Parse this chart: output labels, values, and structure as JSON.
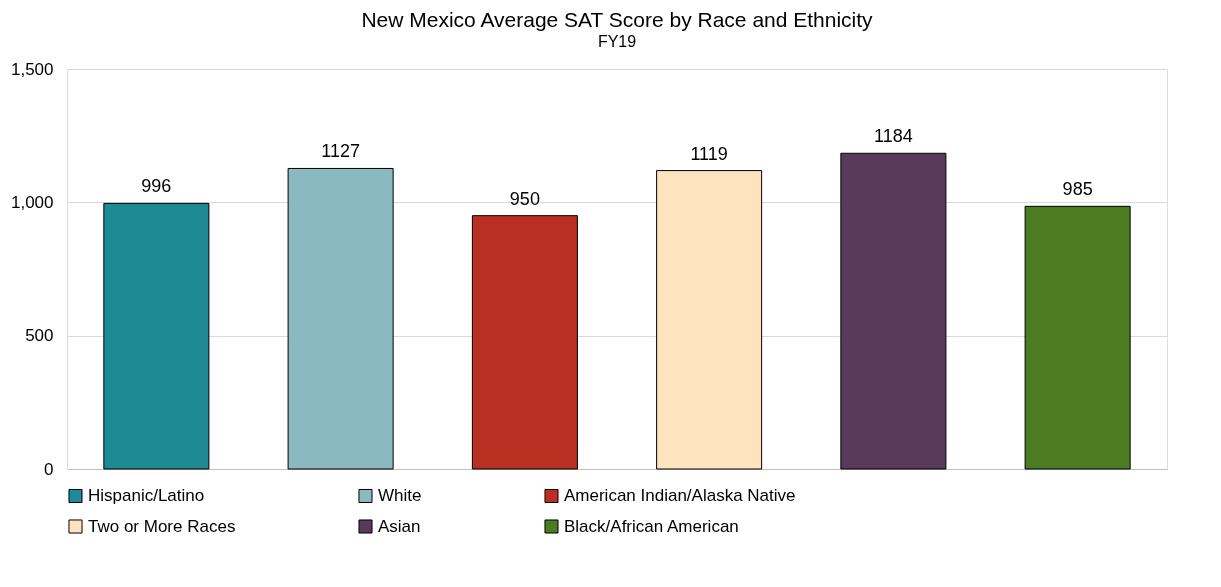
{
  "chart_data": {
    "type": "bar",
    "title": "New Mexico Average SAT Score by Race and Ethnicity",
    "subtitle": "FY19",
    "categories": [
      null
    ],
    "series": [
      {
        "name": "Hispanic/Latino",
        "color": "#1e8a94",
        "values": [
          996
        ]
      },
      {
        "name": "White",
        "color": "#8ab9c0",
        "values": [
          1127
        ]
      },
      {
        "name": "American Indian/Alaska Native",
        "color": "#b93022",
        "values": [
          950
        ]
      },
      {
        "name": "Two or More Races",
        "color": "#fde3c0",
        "values": [
          1119
        ]
      },
      {
        "name": "Asian",
        "color": "#593a5d",
        "values": [
          1184
        ]
      },
      {
        "name": "Black/African American",
        "color": "#4b7c22",
        "values": [
          985
        ]
      }
    ],
    "ylim": [
      0,
      1500
    ],
    "yticks": [
      0,
      500,
      {
        "value": 1000,
        "label": "1,000"
      },
      {
        "value": 1500,
        "label": "1,500"
      }
    ],
    "grid": "y",
    "legend": "bottom",
    "data_labels": true,
    "tick_labels": "y"
  }
}
